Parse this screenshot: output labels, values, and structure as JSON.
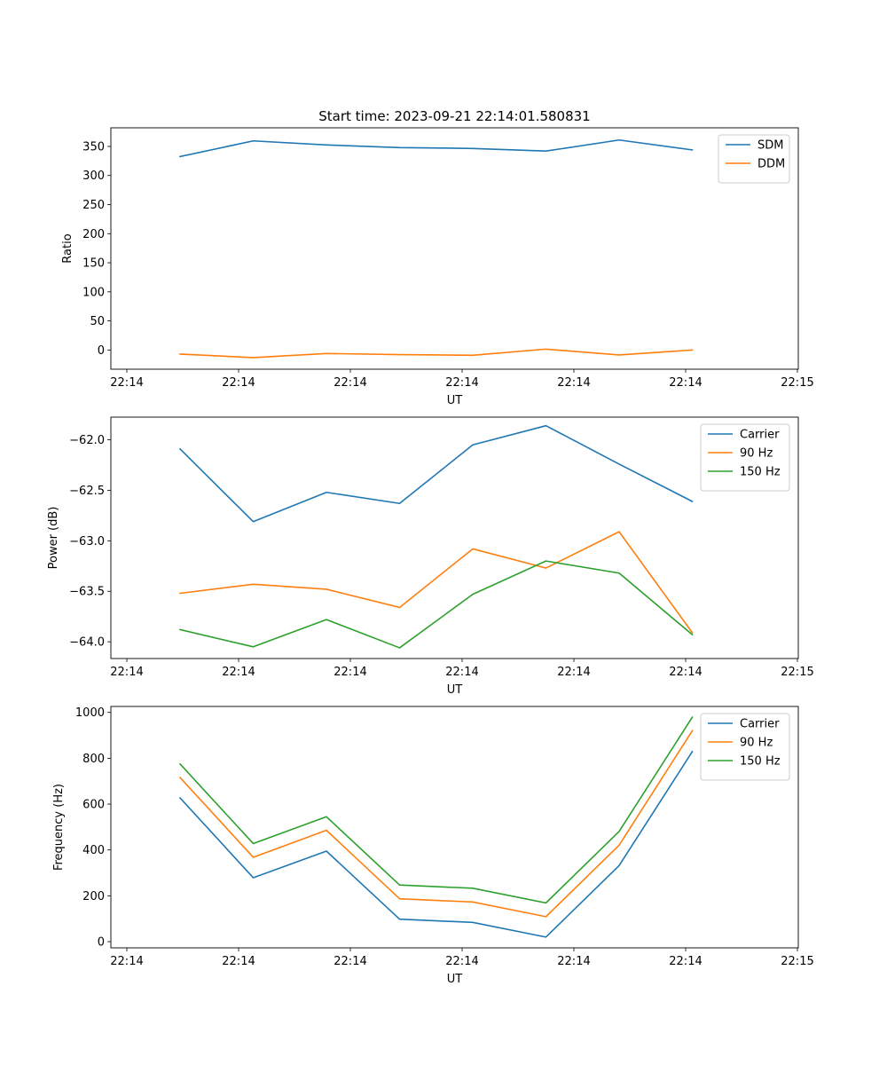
{
  "chart_data": [
    {
      "type": "line",
      "title": "Start time: 2023-09-21 22:14:01.580831",
      "xlabel": "UT",
      "ylabel": "Ratio",
      "x_tick_labels": [
        "22:14",
        "22:14",
        "22:14",
        "22:14",
        "22:14",
        "22:14",
        "22:15"
      ],
      "y_ticks": [
        0,
        50,
        100,
        150,
        200,
        250,
        300,
        350
      ],
      "y_tick_labels": [
        "0",
        "50",
        "100",
        "150",
        "200",
        "250",
        "300",
        "350"
      ],
      "ylim": [
        -33,
        382
      ],
      "x_points": [
        0,
        1,
        2,
        3,
        4,
        5,
        6,
        7
      ],
      "legend_position": "upper right",
      "series": [
        {
          "name": "SDM",
          "color": "#1f77b4",
          "values": [
            332.5,
            359.5,
            352.5,
            348,
            346.5,
            342,
            361,
            344
          ]
        },
        {
          "name": "DDM",
          "color": "#ff7f0e",
          "values": [
            -7,
            -13,
            -6,
            -8,
            -9,
            1.5,
            -8.5,
            0
          ]
        }
      ]
    },
    {
      "type": "line",
      "title": "",
      "xlabel": "UT",
      "ylabel": "Power (dB)",
      "x_tick_labels": [
        "22:14",
        "22:14",
        "22:14",
        "22:14",
        "22:14",
        "22:14",
        "22:15"
      ],
      "y_ticks": [
        -64.0,
        -63.5,
        -63.0,
        -62.5,
        -62.0
      ],
      "y_tick_labels": [
        "−64.0",
        "−63.5",
        "−63.0",
        "−62.5",
        "−62.0"
      ],
      "ylim": [
        -64.166,
        -61.775
      ],
      "x_points": [
        0,
        1,
        2,
        3,
        4,
        5,
        6,
        7
      ],
      "legend_position": "upper right",
      "series": [
        {
          "name": "Carrier",
          "color": "#1f77b4",
          "values": [
            -62.09,
            -62.81,
            -62.52,
            -62.63,
            -62.05,
            -61.86,
            -62.24,
            -62.61
          ]
        },
        {
          "name": "90 Hz",
          "color": "#ff7f0e",
          "values": [
            -63.52,
            -63.43,
            -63.48,
            -63.66,
            -63.08,
            -63.27,
            -62.91,
            -63.91
          ]
        },
        {
          "name": "150 Hz",
          "color": "#2ca02c",
          "values": [
            -63.88,
            -64.05,
            -63.78,
            -64.06,
            -63.53,
            -63.2,
            -63.32,
            -63.93
          ]
        }
      ]
    },
    {
      "type": "line",
      "title": "",
      "xlabel": "UT",
      "ylabel": "Frequency (Hz)",
      "x_tick_labels": [
        "22:14",
        "22:14",
        "22:14",
        "22:14",
        "22:14",
        "22:14",
        "22:15"
      ],
      "y_ticks": [
        0,
        200,
        400,
        600,
        800,
        1000
      ],
      "y_tick_labels": [
        "0",
        "200",
        "400",
        "600",
        "800",
        "1000"
      ],
      "ylim": [
        -27,
        1026
      ],
      "x_points": [
        0,
        1,
        2,
        3,
        4,
        5,
        6,
        7
      ],
      "legend_position": "upper right",
      "series": [
        {
          "name": "Carrier",
          "color": "#1f77b4",
          "values": [
            627,
            279,
            395,
            98,
            84,
            20,
            332,
            829
          ]
        },
        {
          "name": "90 Hz",
          "color": "#ff7f0e",
          "values": [
            716,
            368,
            486,
            187,
            173,
            109,
            421,
            920
          ]
        },
        {
          "name": "150 Hz",
          "color": "#2ca02c",
          "values": [
            775,
            428,
            545,
            247,
            233,
            169,
            481,
            979
          ]
        }
      ]
    }
  ]
}
